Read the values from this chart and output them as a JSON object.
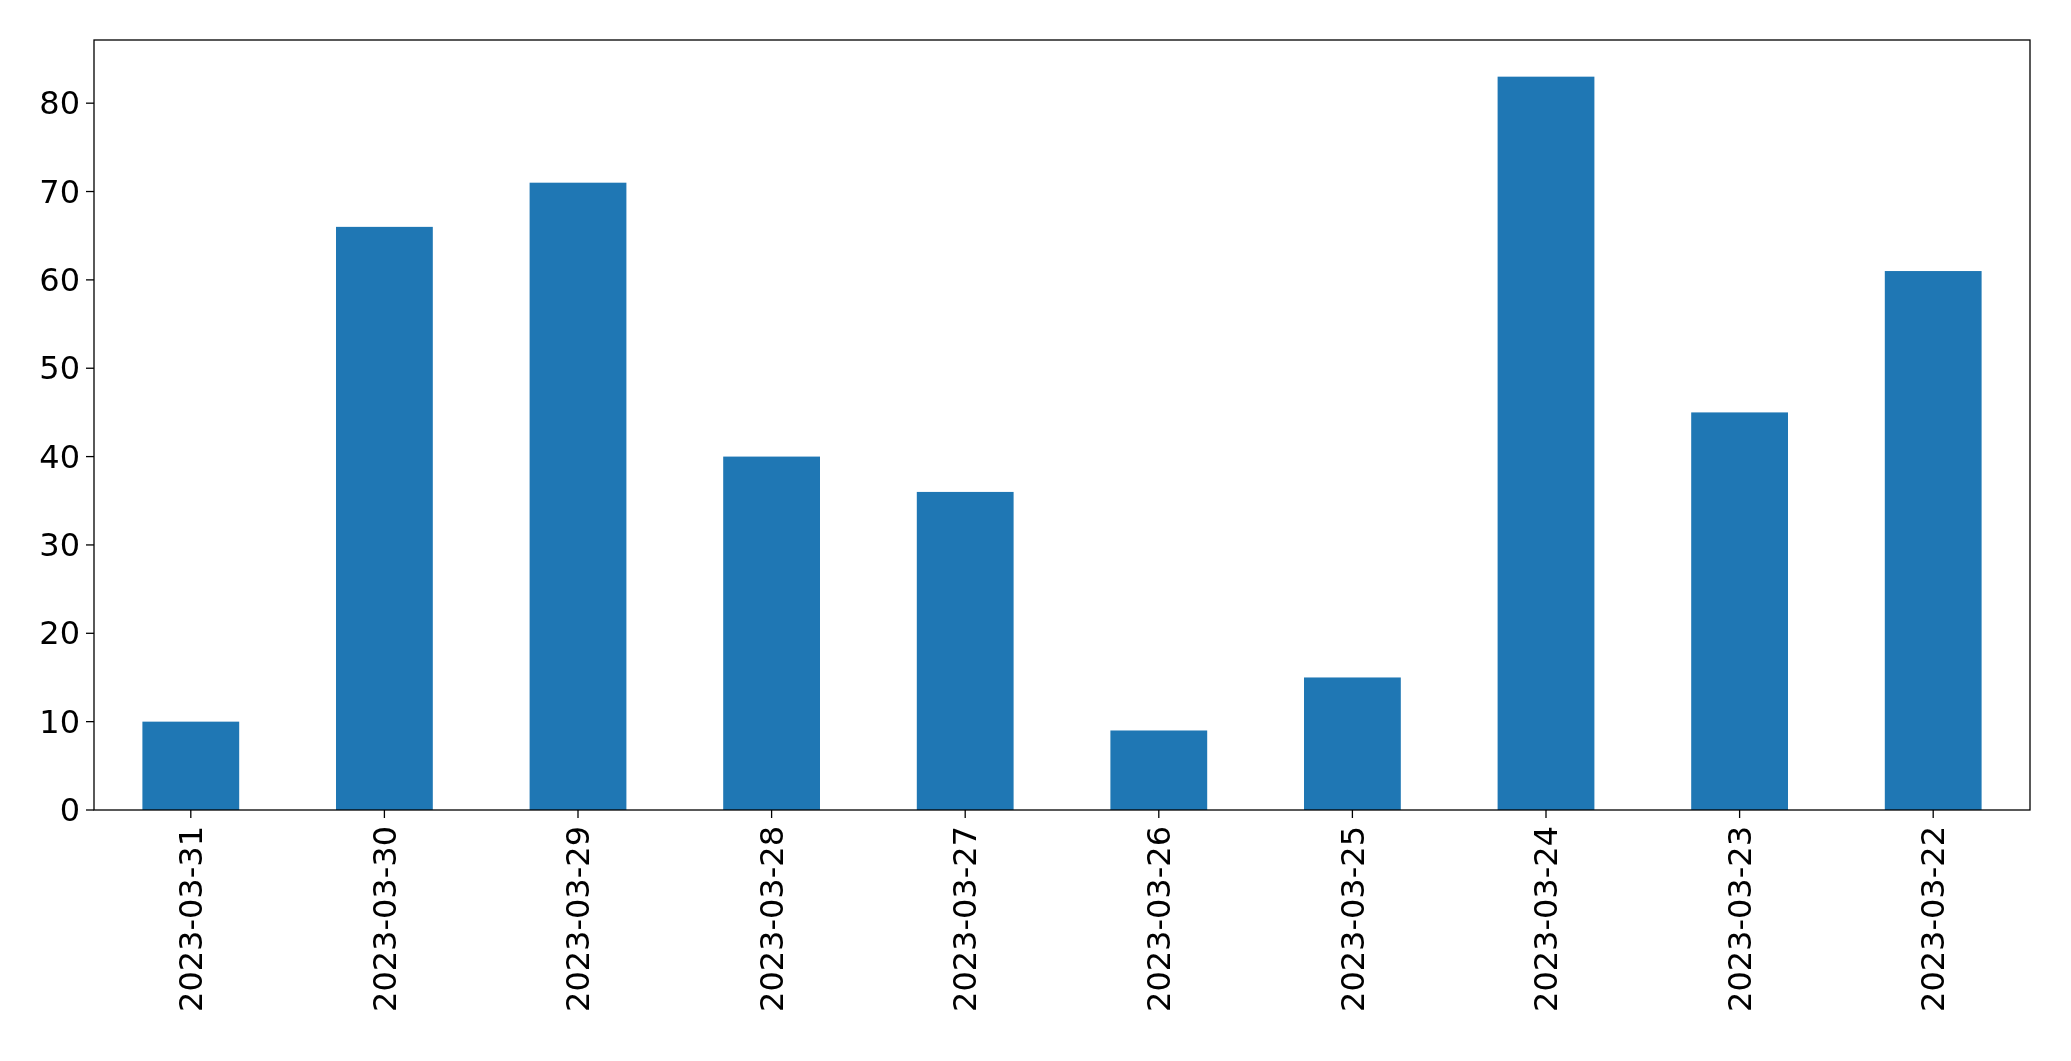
{
  "chart_data": {
    "type": "bar",
    "categories": [
      "2023-03-31",
      "2023-03-30",
      "2023-03-29",
      "2023-03-28",
      "2023-03-27",
      "2023-03-26",
      "2023-03-25",
      "2023-03-24",
      "2023-03-23",
      "2023-03-22"
    ],
    "values": [
      10,
      66,
      71,
      40,
      36,
      9,
      15,
      83,
      45,
      61
    ],
    "color": "#1f77b4",
    "ylim": [
      0,
      87.15
    ],
    "yticks": [
      0,
      10,
      20,
      30,
      40,
      50,
      60,
      70,
      80
    ],
    "grid": false
  }
}
